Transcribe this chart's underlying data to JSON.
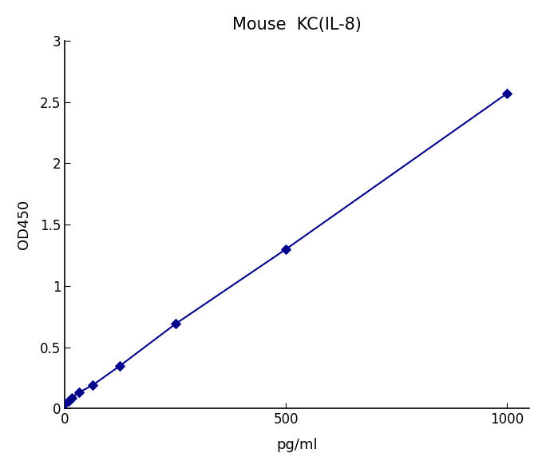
{
  "title": "Mouse  KC(IL-8)",
  "xlabel": "pg/ml",
  "ylabel": "OD450",
  "x_data": [
    0,
    7.8,
    15.6,
    31.25,
    62.5,
    125,
    250,
    500,
    1000
  ],
  "y_data": [
    0.04,
    0.06,
    0.09,
    0.13,
    0.19,
    0.35,
    0.69,
    1.3,
    2.57
  ],
  "line_color": "#00008B",
  "marker_color": "#00008B",
  "xlim": [
    0,
    1050
  ],
  "ylim": [
    0,
    3.0
  ],
  "xticks": [
    0,
    500,
    1000
  ],
  "yticks": [
    0,
    0.5,
    1.0,
    1.5,
    2.0,
    2.5,
    3.0
  ],
  "title_fontsize": 15,
  "label_fontsize": 13,
  "tick_fontsize": 12,
  "background_color": "#ffffff",
  "line_width": 1.5,
  "marker_size": 7
}
